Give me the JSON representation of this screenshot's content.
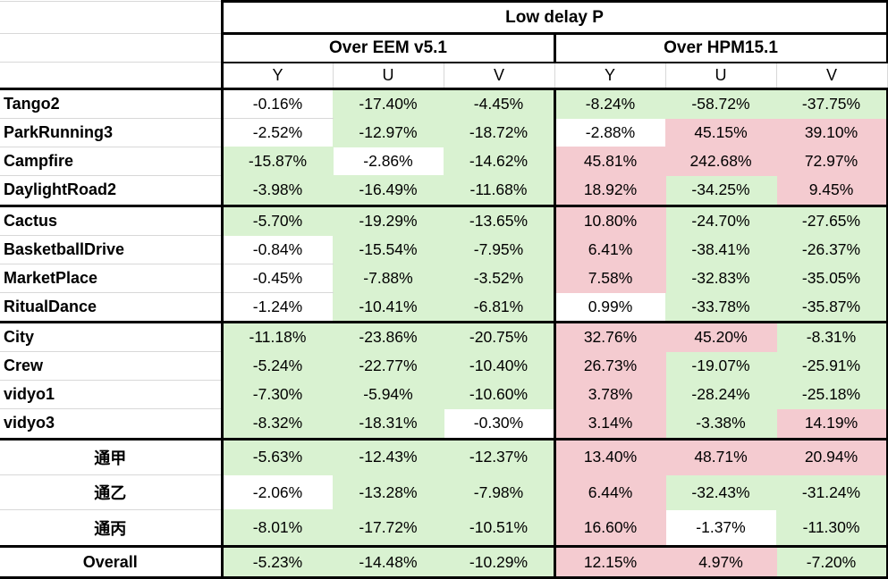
{
  "colors": {
    "fill_green": "#d9f2d1",
    "fill_pink": "#f4cbd0",
    "fill_white": "#ffffff",
    "gridline": "#d8d8d8",
    "border_black": "#000000"
  },
  "chart_data": {
    "type": "table",
    "title": "Low delay P",
    "column_groups": [
      {
        "label": "Over EEM v5.1",
        "columns": [
          "Y",
          "U",
          "V"
        ]
      },
      {
        "label": "Over HPM15.1",
        "columns": [
          "Y",
          "U",
          "V"
        ]
      }
    ],
    "fill_legend": {
      "g": "green (negative / gain)",
      "p": "pink (positive / loss)",
      "w": "white"
    },
    "sections": [
      {
        "rows": [
          {
            "label": "Tango2",
            "align": "left",
            "values": [
              "-0.16%",
              "-17.40%",
              "-4.45%",
              "-8.24%",
              "-58.72%",
              "-37.75%"
            ],
            "fills": [
              "w",
              "g",
              "g",
              "g",
              "g",
              "g"
            ]
          },
          {
            "label": "ParkRunning3",
            "align": "left",
            "values": [
              "-2.52%",
              "-12.97%",
              "-18.72%",
              "-2.88%",
              "45.15%",
              "39.10%"
            ],
            "fills": [
              "w",
              "g",
              "g",
              "w",
              "p",
              "p"
            ]
          },
          {
            "label": "Campfire",
            "align": "left",
            "values": [
              "-15.87%",
              "-2.86%",
              "-14.62%",
              "45.81%",
              "242.68%",
              "72.97%"
            ],
            "fills": [
              "g",
              "w",
              "g",
              "p",
              "p",
              "p"
            ]
          },
          {
            "label": "DaylightRoad2",
            "align": "left",
            "values": [
              "-3.98%",
              "-16.49%",
              "-11.68%",
              "18.92%",
              "-34.25%",
              "9.45%"
            ],
            "fills": [
              "g",
              "g",
              "g",
              "p",
              "g",
              "p"
            ]
          }
        ]
      },
      {
        "rows": [
          {
            "label": "Cactus",
            "align": "left",
            "values": [
              "-5.70%",
              "-19.29%",
              "-13.65%",
              "10.80%",
              "-24.70%",
              "-27.65%"
            ],
            "fills": [
              "g",
              "g",
              "g",
              "p",
              "g",
              "g"
            ]
          },
          {
            "label": "BasketballDrive",
            "align": "left",
            "values": [
              "-0.84%",
              "-15.54%",
              "-7.95%",
              "6.41%",
              "-38.41%",
              "-26.37%"
            ],
            "fills": [
              "w",
              "g",
              "g",
              "p",
              "g",
              "g"
            ]
          },
          {
            "label": "MarketPlace",
            "align": "left",
            "values": [
              "-0.45%",
              "-7.88%",
              "-3.52%",
              "7.58%",
              "-32.83%",
              "-35.05%"
            ],
            "fills": [
              "w",
              "g",
              "g",
              "p",
              "g",
              "g"
            ]
          },
          {
            "label": "RitualDance",
            "align": "left",
            "values": [
              "-1.24%",
              "-10.41%",
              "-6.81%",
              "0.99%",
              "-33.78%",
              "-35.87%"
            ],
            "fills": [
              "w",
              "g",
              "g",
              "w",
              "g",
              "g"
            ]
          }
        ]
      },
      {
        "rows": [
          {
            "label": "City",
            "align": "left",
            "values": [
              "-11.18%",
              "-23.86%",
              "-20.75%",
              "32.76%",
              "45.20%",
              "-8.31%"
            ],
            "fills": [
              "g",
              "g",
              "g",
              "p",
              "p",
              "g"
            ]
          },
          {
            "label": "Crew",
            "align": "left",
            "values": [
              "-5.24%",
              "-22.77%",
              "-10.40%",
              "26.73%",
              "-19.07%",
              "-25.91%"
            ],
            "fills": [
              "g",
              "g",
              "g",
              "p",
              "g",
              "g"
            ]
          },
          {
            "label": "vidyo1",
            "align": "left",
            "values": [
              "-7.30%",
              "-5.94%",
              "-10.60%",
              "3.78%",
              "-28.24%",
              "-25.18%"
            ],
            "fills": [
              "g",
              "g",
              "g",
              "p",
              "g",
              "g"
            ]
          },
          {
            "label": "vidyo3",
            "align": "left",
            "values": [
              "-8.32%",
              "-18.31%",
              "-0.30%",
              "3.14%",
              "-3.38%",
              "14.19%"
            ],
            "fills": [
              "g",
              "g",
              "w",
              "p",
              "g",
              "p"
            ]
          }
        ]
      },
      {
        "rows": [
          {
            "label": "通甲",
            "align": "center",
            "values": [
              "-5.63%",
              "-12.43%",
              "-12.37%",
              "13.40%",
              "48.71%",
              "20.94%"
            ],
            "fills": [
              "g",
              "g",
              "g",
              "p",
              "p",
              "p"
            ]
          },
          {
            "label": "通乙",
            "align": "center",
            "values": [
              "-2.06%",
              "-13.28%",
              "-7.98%",
              "6.44%",
              "-32.43%",
              "-31.24%"
            ],
            "fills": [
              "w",
              "g",
              "g",
              "p",
              "g",
              "g"
            ]
          },
          {
            "label": "通丙",
            "align": "center",
            "values": [
              "-8.01%",
              "-17.72%",
              "-10.51%",
              "16.60%",
              "-1.37%",
              "-11.30%"
            ],
            "fills": [
              "g",
              "g",
              "g",
              "p",
              "w",
              "g"
            ]
          }
        ]
      },
      {
        "rows": [
          {
            "label": "Overall",
            "align": "center",
            "values": [
              "-5.23%",
              "-14.48%",
              "-10.29%",
              "12.15%",
              "4.97%",
              "-7.20%"
            ],
            "fills": [
              "g",
              "g",
              "g",
              "p",
              "p",
              "g"
            ]
          }
        ]
      }
    ]
  }
}
